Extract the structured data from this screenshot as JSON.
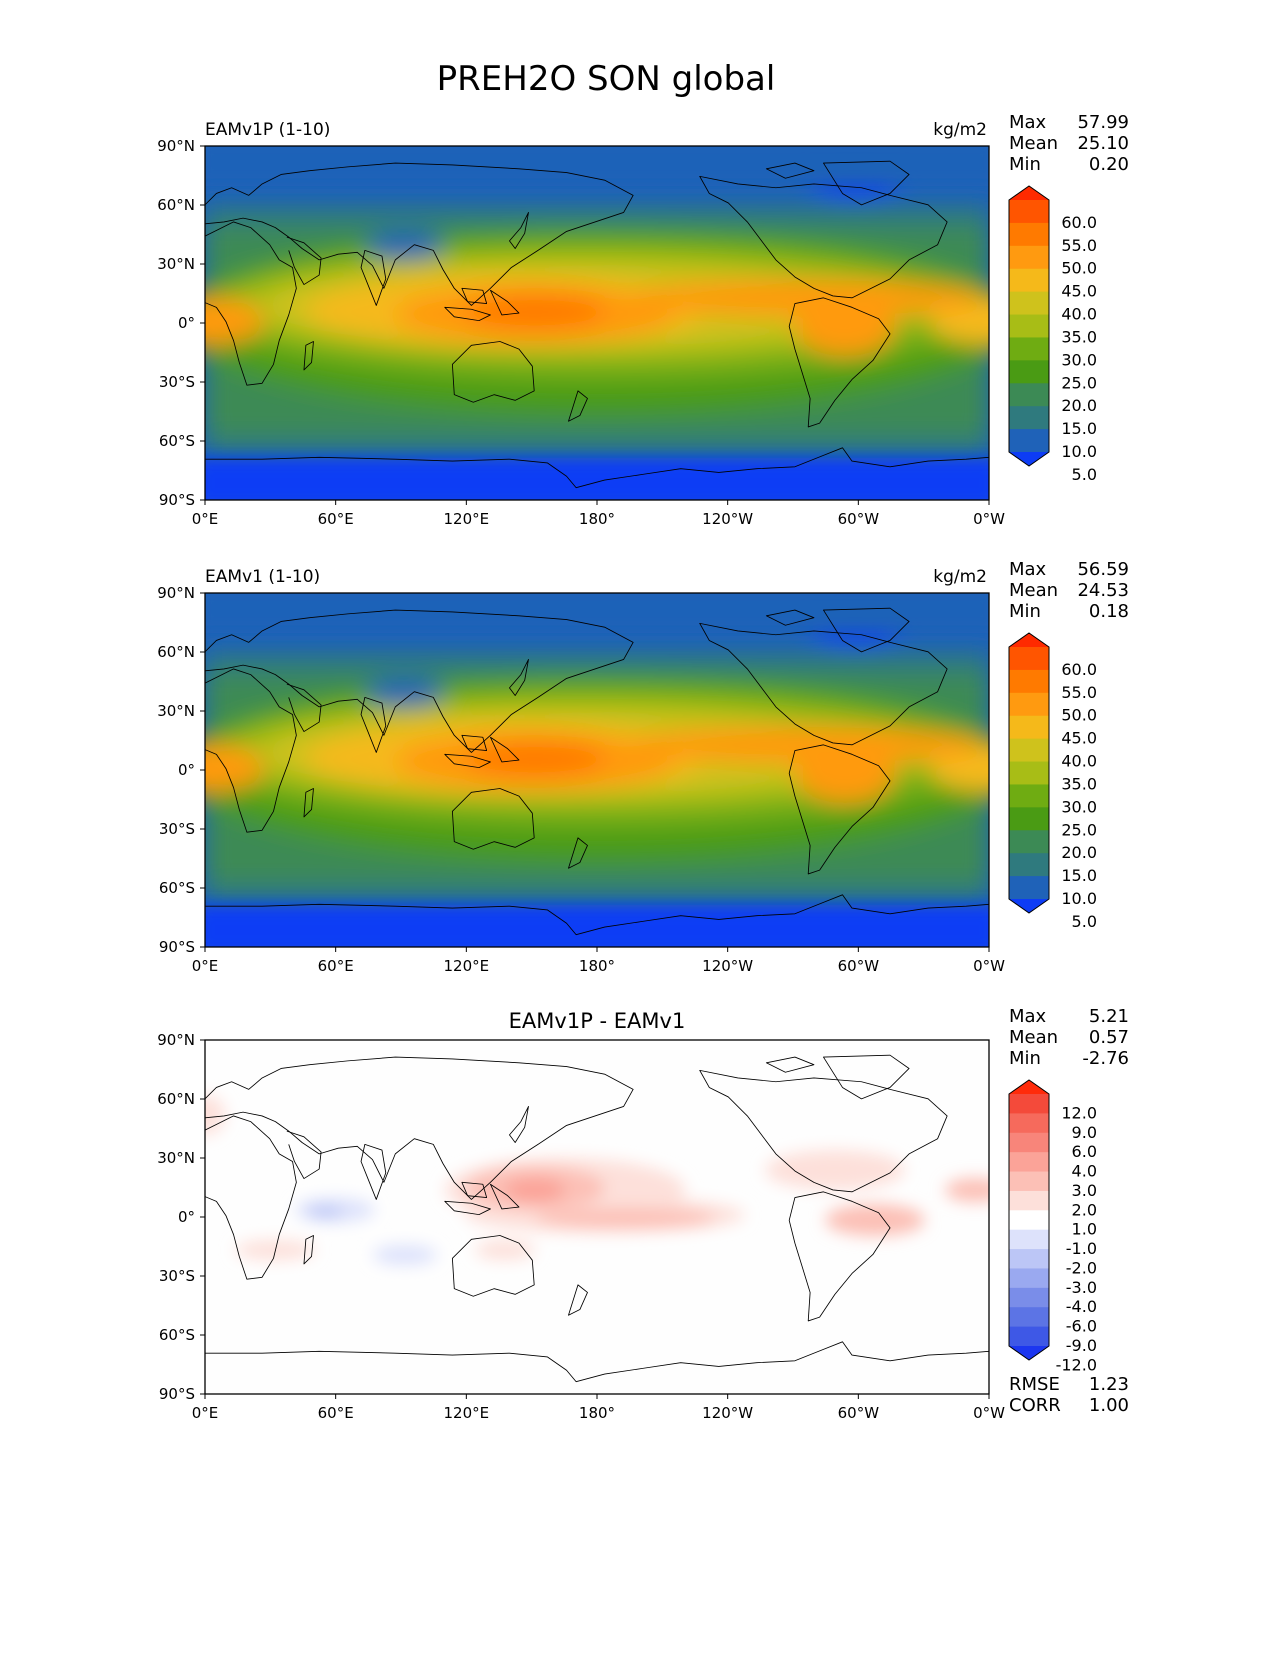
{
  "figure": {
    "title": "PREH2O SON global",
    "lon_ticks": [
      "0°E",
      "60°E",
      "120°E",
      "180°",
      "120°W",
      "60°W",
      "0°W"
    ],
    "lat_ticks": [
      "90°N",
      "60°N",
      "30°N",
      "0°",
      "30°S",
      "60°S",
      "90°S"
    ]
  },
  "panels": [
    {
      "name": "EAMv1P (1-10)",
      "units": "kg/m2",
      "stats": {
        "max_label": "Max",
        "max": "57.99",
        "mean_label": "Mean",
        "mean": "25.10",
        "min_label": "Min",
        "min": "0.20"
      },
      "colorbar": {
        "labels": [
          "60.0",
          "55.0",
          "50.0",
          "45.0",
          "40.0",
          "35.0",
          "30.0",
          "25.0",
          "20.0",
          "15.0",
          "10.0",
          "5.0"
        ],
        "colors": [
          "#ff2a00",
          "#ff5500",
          "#ff7a00",
          "#ff9a10",
          "#f5b91a",
          "#cfc21c",
          "#a8bd16",
          "#6fac12",
          "#4a9b14",
          "#3c8a55",
          "#2f7a7e",
          "#1f62b8",
          "#0d3cf5"
        ]
      }
    },
    {
      "name": "EAMv1 (1-10)",
      "units": "kg/m2",
      "stats": {
        "max_label": "Max",
        "max": "56.59",
        "mean_label": "Mean",
        "mean": "24.53",
        "min_label": "Min",
        "min": "0.18"
      },
      "colorbar": {
        "labels": [
          "60.0",
          "55.0",
          "50.0",
          "45.0",
          "40.0",
          "35.0",
          "30.0",
          "25.0",
          "20.0",
          "15.0",
          "10.0",
          "5.0"
        ],
        "colors": [
          "#ff2a00",
          "#ff5500",
          "#ff7a00",
          "#ff9a10",
          "#f5b91a",
          "#cfc21c",
          "#a8bd16",
          "#6fac12",
          "#4a9b14",
          "#3c8a55",
          "#2f7a7e",
          "#1f62b8",
          "#0d3cf5"
        ]
      }
    },
    {
      "name": "EAMv1P - EAMv1",
      "stats": {
        "max_label": "Max",
        "max": "5.21",
        "mean_label": "Mean",
        "mean": "0.57",
        "min_label": "Min",
        "min": "-2.76"
      },
      "colorbar": {
        "labels": [
          "12.0",
          "9.0",
          "6.0",
          "4.0",
          "3.0",
          "2.0",
          "1.0",
          "-1.0",
          "-2.0",
          "-3.0",
          "-4.0",
          "-6.0",
          "-9.0",
          "-12.0"
        ],
        "colors": [
          "#ff2b0a",
          "#f44a3a",
          "#f66a5c",
          "#f8857a",
          "#fba398",
          "#fcc0b6",
          "#fde0da",
          "#ffffff",
          "#dde2fb",
          "#bcc6f6",
          "#9aa9f0",
          "#7a8de9",
          "#5c74e5",
          "#3e58e6",
          "#1c36f0"
        ]
      },
      "extra": {
        "rmse_label": "RMSE",
        "rmse": "1.23",
        "corr_label": "CORR",
        "corr": "1.00"
      }
    }
  ]
}
